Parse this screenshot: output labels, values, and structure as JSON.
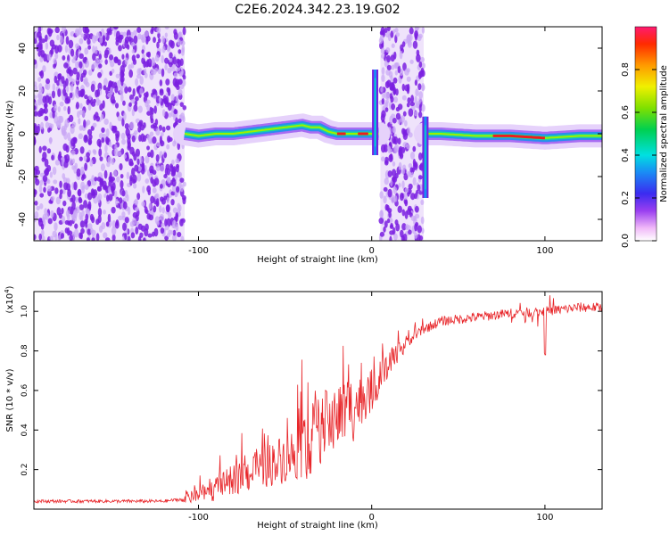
{
  "title": "C2E6.2024.342.23.19.G02",
  "colors": {
    "snr_line": "#e8262a",
    "noise_purple": "#7a1fe0",
    "noise_light": "#c9a6f5",
    "frame": "#000000"
  },
  "chart_data": [
    {
      "type": "heatmap",
      "name": "spectrogram",
      "xlabel": "Height of straight line (km)",
      "ylabel": "Frequency (Hz)",
      "xlim": [
        -195,
        133
      ],
      "ylim": [
        -50,
        50
      ],
      "xticks": [
        -100,
        0,
        100
      ],
      "xtick_labels": [
        "-100",
        "0",
        "100"
      ],
      "yticks": [
        -40,
        -20,
        0,
        20,
        40
      ],
      "ytick_labels": [
        "-40",
        "-20",
        "0",
        "20",
        "40"
      ],
      "noise_regions": [
        [
          -195,
          -108
        ],
        [
          5,
          30
        ]
      ],
      "signal_track": {
        "x": [
          -108,
          -100,
          -90,
          -80,
          -70,
          -60,
          -50,
          -40,
          -35,
          -30,
          -25,
          -20,
          -15,
          -10,
          -5,
          0,
          2,
          32,
          40,
          60,
          80,
          100,
          120,
          133
        ],
        "y": [
          0,
          -1,
          0,
          0,
          1,
          2,
          3,
          4,
          3,
          3,
          1,
          0,
          0,
          0,
          0,
          0,
          0,
          0,
          0,
          -1,
          -1,
          -2,
          -1,
          -1
        ]
      },
      "spikes": [
        {
          "x": 2,
          "y_range": [
            -10,
            30
          ]
        },
        {
          "x": 31,
          "y_range": [
            -30,
            8
          ]
        }
      ],
      "colorbar": {
        "label": "Normalized spectral amplitude",
        "range": [
          0,
          1
        ],
        "ticks": [
          0.0,
          0.2,
          0.4,
          0.6,
          0.8
        ],
        "tick_labels": [
          "0.0",
          "0.2",
          "0.4",
          "0.6",
          "0.8"
        ]
      }
    },
    {
      "type": "line",
      "name": "snr",
      "xlabel": "Height of straight line (km)",
      "ylabel": "SNR (10 * v/v)",
      "y_scale_label": "(x10",
      "y_scale_exp": "4",
      "y_scale_close": ")",
      "xlim": [
        -195,
        133
      ],
      "ylim": [
        0.0,
        1.1
      ],
      "xticks": [
        -100,
        0,
        100
      ],
      "xtick_labels": [
        "-100",
        "0",
        "100"
      ],
      "yticks": [
        0.2,
        0.4,
        0.6,
        0.8,
        1.0
      ],
      "ytick_labels": [
        "0.2",
        "0.4",
        "0.6",
        "0.8",
        "1.0"
      ],
      "series": [
        {
          "name": "SNR",
          "x": [
            -195,
            -180,
            -160,
            -140,
            -120,
            -110,
            -100,
            -90,
            -80,
            -70,
            -60,
            -50,
            -40,
            -30,
            -20,
            -10,
            0,
            10,
            20,
            30,
            40,
            60,
            80,
            100,
            120,
            133
          ],
          "values": [
            0.04,
            0.04,
            0.04,
            0.04,
            0.04,
            0.05,
            0.07,
            0.1,
            0.15,
            0.18,
            0.22,
            0.26,
            0.3,
            0.4,
            0.47,
            0.52,
            0.6,
            0.72,
            0.84,
            0.91,
            0.95,
            0.97,
            0.99,
            1.0,
            1.02,
            1.02
          ]
        }
      ],
      "annotations": [
        {
          "x": 100,
          "y": 0.78,
          "note": "dip"
        }
      ]
    }
  ]
}
